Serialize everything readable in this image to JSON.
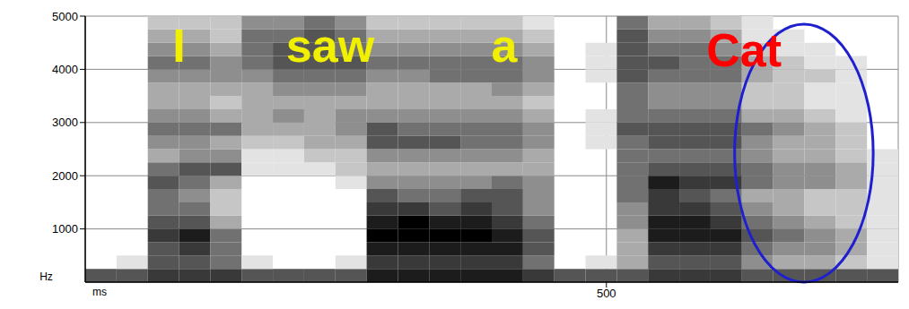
{
  "chart_data": {
    "type": "heatmap",
    "x_label": "ms",
    "y_label": "Hz",
    "xlim": [
      0,
      780
    ],
    "xticks": [
      500
    ],
    "ylim": [
      0,
      5000
    ],
    "yticks": [
      1000,
      2000,
      3000,
      4000,
      5000
    ],
    "grid": true,
    "x_bins": [
      0,
      30,
      60,
      90,
      120,
      150,
      180,
      210,
      240,
      270,
      300,
      330,
      360,
      390,
      420,
      450,
      480,
      510,
      540,
      570,
      600,
      630,
      660,
      690,
      720,
      750,
      780
    ],
    "y_bins": [
      0,
      250,
      500,
      750,
      1000,
      1250,
      1500,
      1750,
      2000,
      2250,
      2500,
      2750,
      3000,
      3250,
      3500,
      3750,
      4000,
      4250,
      4500,
      4750,
      5000
    ],
    "cells": [
      [
        6,
        0,
        0,
        0,
        0,
        0,
        0,
        0,
        0,
        0,
        0,
        0,
        0,
        0,
        0,
        0,
        0,
        0,
        0,
        0
      ],
      [
        6,
        1,
        0,
        0,
        0,
        0,
        0,
        0,
        0,
        0,
        0,
        0,
        0,
        0,
        0,
        0,
        0,
        0,
        0,
        0
      ],
      [
        7,
        6,
        6,
        7,
        6,
        5,
        5,
        6,
        5,
        3,
        4,
        5,
        4,
        3,
        3,
        4,
        5,
        4,
        3,
        2
      ],
      [
        7,
        6,
        7,
        8,
        6,
        5,
        4,
        5,
        6,
        4,
        4,
        5,
        4,
        3,
        3,
        4,
        5,
        4,
        3,
        2
      ],
      [
        7,
        5,
        5,
        5,
        3,
        2,
        2,
        3,
        6,
        4,
        3,
        5,
        3,
        2,
        3,
        4,
        4,
        3,
        2,
        2
      ],
      [
        6,
        1,
        0,
        0,
        0,
        0,
        0,
        0,
        1,
        1,
        2,
        3,
        3,
        3,
        3,
        4,
        5,
        5,
        5,
        4
      ],
      [
        6,
        0,
        0,
        0,
        0,
        0,
        0,
        0,
        1,
        1,
        2,
        3,
        4,
        3,
        4,
        5,
        6,
        6,
        5,
        4
      ],
      [
        6,
        0,
        0,
        0,
        0,
        0,
        0,
        0,
        1,
        2,
        3,
        3,
        3,
        3,
        4,
        5,
        6,
        6,
        6,
        5
      ],
      [
        6,
        1,
        0,
        0,
        0,
        0,
        0,
        1,
        2,
        2,
        3,
        4,
        4,
        3,
        4,
        5,
        6,
        5,
        5,
        4
      ],
      [
        8,
        7,
        8,
        9,
        8,
        7,
        6,
        4,
        3,
        4,
        6,
        6,
        4,
        3,
        3,
        4,
        5,
        4,
        3,
        2
      ],
      [
        8,
        7,
        8,
        9,
        9,
        7,
        5,
        4,
        3,
        4,
        6,
        5,
        4,
        3,
        3,
        4,
        5,
        4,
        3,
        2
      ],
      [
        8,
        7,
        8,
        9,
        8,
        6,
        5,
        4,
        3,
        4,
        6,
        5,
        4,
        3,
        3,
        5,
        5,
        4,
        3,
        2
      ],
      [
        8,
        7,
        8,
        9,
        8,
        7,
        6,
        4,
        3,
        4,
        5,
        5,
        4,
        3,
        3,
        5,
        5,
        4,
        3,
        2
      ],
      [
        8,
        7,
        8,
        8,
        7,
        6,
        6,
        5,
        3,
        4,
        5,
        5,
        4,
        3,
        4,
        5,
        5,
        4,
        3,
        2
      ],
      [
        7,
        5,
        6,
        6,
        5,
        4,
        4,
        4,
        3,
        3,
        4,
        4,
        3,
        2,
        3,
        4,
        4,
        3,
        2,
        1
      ],
      [
        6,
        0,
        0,
        0,
        0,
        0,
        0,
        0,
        0,
        0,
        0,
        0,
        0,
        0,
        0,
        0,
        0,
        0,
        0,
        0
      ],
      [
        6,
        1,
        0,
        0,
        0,
        0,
        0,
        0,
        0,
        0,
        1,
        1,
        1,
        0,
        0,
        1,
        1,
        1,
        0,
        0
      ],
      [
        6,
        3,
        3,
        3,
        4,
        4,
        5,
        5,
        5,
        5,
        5,
        6,
        5,
        5,
        5,
        6,
        6,
        6,
        6,
        5
      ],
      [
        7,
        6,
        7,
        8,
        8,
        7,
        7,
        8,
        6,
        5,
        6,
        6,
        5,
        4,
        4,
        5,
        6,
        5,
        4,
        3
      ],
      [
        7,
        6,
        7,
        8,
        8,
        7,
        6,
        7,
        6,
        5,
        6,
        6,
        5,
        4,
        4,
        5,
        5,
        5,
        4,
        3
      ],
      [
        7,
        6,
        7,
        8,
        7,
        6,
        5,
        7,
        6,
        5,
        6,
        6,
        5,
        4,
        4,
        5,
        5,
        4,
        3,
        2
      ],
      [
        6,
        4,
        5,
        6,
        5,
        4,
        3,
        5,
        5,
        4,
        4,
        5,
        3,
        2,
        2,
        3,
        3,
        2,
        1,
        1
      ],
      [
        6,
        3,
        4,
        5,
        4,
        3,
        3,
        4,
        4,
        3,
        3,
        4,
        3,
        2,
        2,
        2,
        2,
        1,
        1,
        0
      ],
      [
        6,
        3,
        4,
        4,
        3,
        2,
        2,
        4,
        4,
        3,
        3,
        3,
        2,
        1,
        1,
        2,
        1,
        1,
        0,
        0
      ],
      [
        6,
        2,
        3,
        3,
        2,
        2,
        2,
        3,
        3,
        2,
        2,
        2,
        1,
        1,
        1,
        1,
        1,
        0,
        0,
        0
      ],
      [
        6,
        1,
        1,
        1,
        1,
        1,
        1,
        1,
        1,
        1,
        0,
        0,
        0,
        0,
        0,
        0,
        0,
        0,
        0,
        0
      ]
    ],
    "annotations": [
      {
        "text": "I",
        "x": 90,
        "y": 4450,
        "color": "#f0f000"
      },
      {
        "text": "saw",
        "x": 235,
        "y": 4450,
        "color": "#f0f000"
      },
      {
        "text": "a",
        "x": 402,
        "y": 4450,
        "color": "#f0f000"
      },
      {
        "text": "Cat",
        "x": 632,
        "y": 4370,
        "color": "#ff0000"
      },
      {
        "shape": "ellipse",
        "x": [
          623,
          756
        ],
        "y": [
          0,
          4850
        ],
        "color": "#1f1fd0"
      }
    ]
  }
}
